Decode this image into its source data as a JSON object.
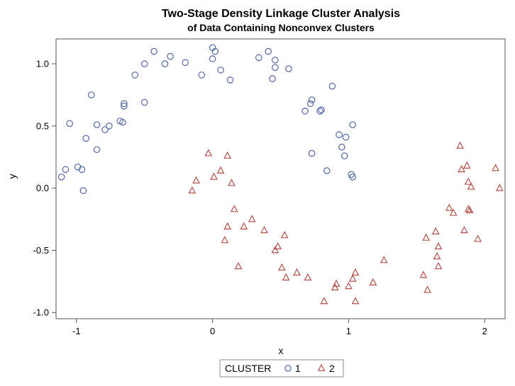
{
  "chart_data": {
    "type": "scatter",
    "title": "Two-Stage Density Linkage Cluster Analysis",
    "subtitle": "of Data Containing Nonconvex Clusters",
    "xlabel": "x",
    "ylabel": "y",
    "xlim": [
      -1.15,
      2.15
    ],
    "ylim": [
      -1.05,
      1.2
    ],
    "xticks": [
      -1,
      0,
      1,
      2
    ],
    "xtick_labels": [
      "-1",
      "0",
      "1",
      "2"
    ],
    "yticks": [
      -1.0,
      -0.5,
      0.0,
      0.5,
      1.0
    ],
    "ytick_labels": [
      "-1.0",
      "-0.5",
      "0.0",
      "0.5",
      "1.0"
    ],
    "grid": false,
    "legend": {
      "title": "CLUSTER",
      "placement": "bottom-center"
    },
    "series": [
      {
        "name": "1",
        "marker": "circle",
        "color": "#5566A6",
        "points": [
          [
            -1.11,
            0.09
          ],
          [
            -1.08,
            0.15
          ],
          [
            -1.05,
            0.52
          ],
          [
            -0.99,
            0.17
          ],
          [
            -0.96,
            0.15
          ],
          [
            -0.95,
            -0.02
          ],
          [
            -0.93,
            0.4
          ],
          [
            -0.89,
            0.75
          ],
          [
            -0.85,
            0.51
          ],
          [
            -0.85,
            0.31
          ],
          [
            -0.79,
            0.47
          ],
          [
            -0.76,
            0.5
          ],
          [
            -0.68,
            0.54
          ],
          [
            -0.66,
            0.53
          ],
          [
            -0.65,
            0.66
          ],
          [
            -0.65,
            0.68
          ],
          [
            -0.57,
            0.91
          ],
          [
            -0.5,
            1.0
          ],
          [
            -0.5,
            0.69
          ],
          [
            -0.43,
            1.1
          ],
          [
            -0.35,
            1.0
          ],
          [
            -0.31,
            1.06
          ],
          [
            -0.2,
            1.01
          ],
          [
            -0.08,
            0.91
          ],
          [
            0.0,
            1.04
          ],
          [
            0.0,
            1.13
          ],
          [
            0.02,
            1.1
          ],
          [
            0.06,
            0.95
          ],
          [
            0.13,
            0.87
          ],
          [
            0.34,
            1.05
          ],
          [
            0.41,
            1.1
          ],
          [
            0.44,
            0.88
          ],
          [
            0.46,
            0.97
          ],
          [
            0.46,
            1.03
          ],
          [
            0.56,
            0.96
          ],
          [
            0.68,
            0.62
          ],
          [
            0.72,
            0.68
          ],
          [
            0.73,
            0.71
          ],
          [
            0.73,
            0.28
          ],
          [
            0.79,
            0.62
          ],
          [
            0.8,
            0.63
          ],
          [
            0.84,
            0.14
          ],
          [
            0.88,
            0.82
          ],
          [
            0.93,
            0.43
          ],
          [
            0.95,
            0.33
          ],
          [
            0.97,
            0.26
          ],
          [
            0.98,
            0.41
          ],
          [
            1.02,
            0.11
          ],
          [
            1.03,
            0.09
          ],
          [
            1.03,
            0.51
          ]
        ]
      },
      {
        "name": "2",
        "marker": "triangle",
        "color": "#B5504A",
        "points": [
          [
            -0.15,
            -0.02
          ],
          [
            -0.12,
            0.06
          ],
          [
            -0.03,
            0.28
          ],
          [
            0.01,
            0.09
          ],
          [
            0.06,
            0.14
          ],
          [
            0.09,
            -0.42
          ],
          [
            0.11,
            -0.31
          ],
          [
            0.11,
            0.26
          ],
          [
            0.14,
            0.04
          ],
          [
            0.16,
            -0.17
          ],
          [
            0.19,
            -0.63
          ],
          [
            0.23,
            -0.31
          ],
          [
            0.29,
            -0.25
          ],
          [
            0.38,
            -0.34
          ],
          [
            0.46,
            -0.5
          ],
          [
            0.48,
            -0.47
          ],
          [
            0.51,
            -0.64
          ],
          [
            0.53,
            -0.38
          ],
          [
            0.54,
            -0.72
          ],
          [
            0.62,
            -0.68
          ],
          [
            0.7,
            -0.72
          ],
          [
            0.82,
            -0.91
          ],
          [
            0.9,
            -0.8
          ],
          [
            0.91,
            -0.77
          ],
          [
            1.0,
            -0.79
          ],
          [
            1.03,
            -0.73
          ],
          [
            1.05,
            -0.68
          ],
          [
            1.05,
            -0.91
          ],
          [
            1.18,
            -0.76
          ],
          [
            1.26,
            -0.58
          ],
          [
            1.55,
            -0.7
          ],
          [
            1.57,
            -0.4
          ],
          [
            1.58,
            -0.82
          ],
          [
            1.64,
            -0.35
          ],
          [
            1.65,
            -0.55
          ],
          [
            1.66,
            -0.63
          ],
          [
            1.66,
            -0.47
          ],
          [
            1.74,
            -0.16
          ],
          [
            1.77,
            -0.2
          ],
          [
            1.82,
            0.34
          ],
          [
            1.83,
            0.15
          ],
          [
            1.85,
            -0.34
          ],
          [
            1.87,
            0.18
          ],
          [
            1.88,
            0.05
          ],
          [
            1.88,
            -0.17
          ],
          [
            1.89,
            -0.18
          ],
          [
            1.9,
            0.01
          ],
          [
            1.95,
            -0.41
          ],
          [
            2.08,
            0.16
          ],
          [
            2.11,
            0.0
          ]
        ]
      }
    ]
  }
}
